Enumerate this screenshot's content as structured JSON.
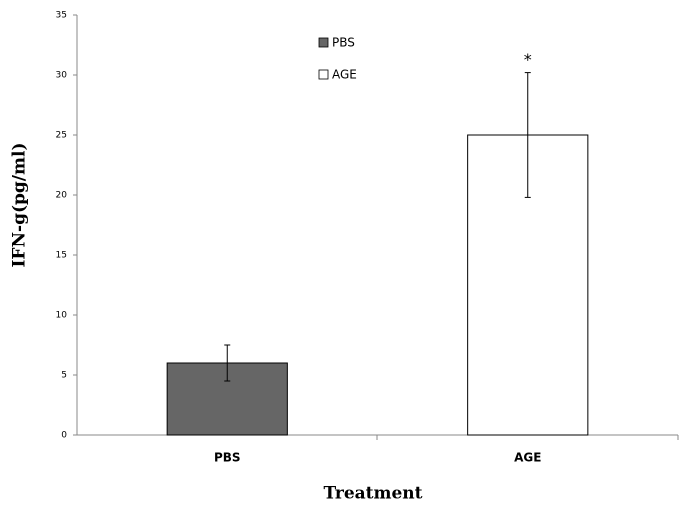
{
  "chart_data": {
    "type": "bar",
    "x_label": "Treatment",
    "y_label": "IFN-g(pg/ml)",
    "categories": [
      "PBS",
      "AGE"
    ],
    "series": [
      {
        "name": "PBS",
        "color": "#666666",
        "values": [
          6,
          null
        ],
        "errors": [
          1.5,
          null
        ]
      },
      {
        "name": "AGE",
        "color": "#ffffff",
        "values": [
          null,
          25
        ],
        "errors": [
          null,
          5.2
        ]
      }
    ],
    "annotation": "*",
    "ylim": [
      0,
      35
    ],
    "yticks": [
      0,
      5,
      10,
      15,
      20,
      25,
      30,
      35
    ],
    "grid": false
  }
}
